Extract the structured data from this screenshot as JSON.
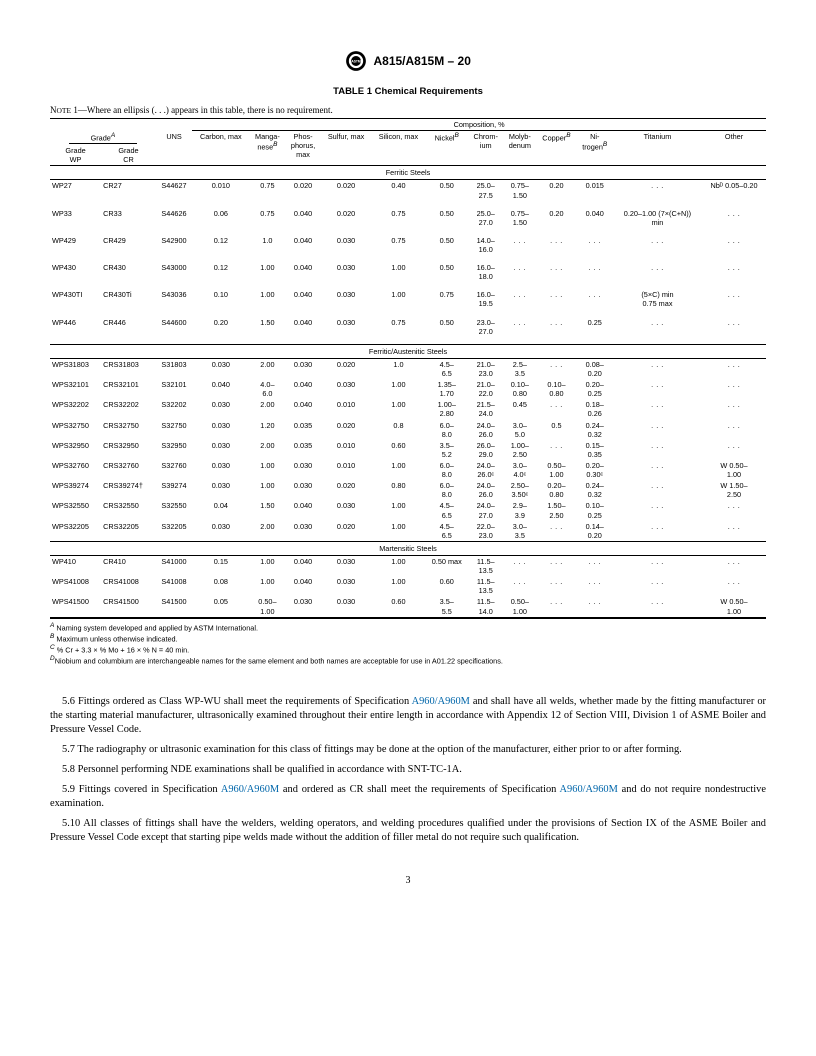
{
  "header": {
    "designation": "A815/A815M – 20"
  },
  "tableTitle": "TABLE 1 Chemical Requirements",
  "note": {
    "label": "Note",
    "num": "1",
    "text": "—Where an ellipsis (. . .) appears in this table, there is no requirement."
  },
  "compositionHeader": "Composition, %",
  "gradeHeader": "Grade",
  "columns": [
    "Grade WP",
    "Grade CR",
    "UNS",
    "Carbon, max",
    "Manga-nese",
    "Phos-phorus, max",
    "Sulfur, max",
    "Silicon, max",
    "Nickel",
    "Chrom-ium",
    "Molyb-denum",
    "Copper",
    "Ni-trogen",
    "Titanium",
    "Other"
  ],
  "superB": "B",
  "superA": "A",
  "sections": [
    {
      "title": "Ferritic Steels",
      "rows": [
        [
          "WP27",
          "CR27",
          "S44627",
          "0.010",
          "0.75",
          "0.020",
          "0.020",
          "0.40",
          "0.50",
          "25.0–27.5",
          "0.75–1.50",
          "0.20",
          "0.015",
          ". . .",
          "Nbᴰ 0.05–0.20"
        ],
        [
          "WP33",
          "CR33",
          "S44626",
          "0.06",
          "0.75",
          "0.040",
          "0.020",
          "0.75",
          "0.50",
          "25.0–27.0",
          "0.75–1.50",
          "0.20",
          "0.040",
          "0.20–1.00 (7×(C+N)) min",
          ". . ."
        ],
        [
          "WP429",
          "CR429",
          "S42900",
          "0.12",
          "1.0",
          "0.040",
          "0.030",
          "0.75",
          "0.50",
          "14.0–16.0",
          ". . .",
          ". . .",
          ". . .",
          ". . .",
          ". . ."
        ],
        [
          "WP430",
          "CR430",
          "S43000",
          "0.12",
          "1.00",
          "0.040",
          "0.030",
          "1.00",
          "0.50",
          "16.0–18.0",
          ". . .",
          ". . .",
          ". . .",
          ". . .",
          ". . ."
        ],
        [
          "WP430TI",
          "CR430Ti",
          "S43036",
          "0.10",
          "1.00",
          "0.040",
          "0.030",
          "1.00",
          "0.75",
          "16.0–19.5",
          ". . .",
          ". . .",
          ". . .",
          "(5×C) min 0.75 max",
          ". . ."
        ],
        [
          "WP446",
          "CR446",
          "S44600",
          "0.20",
          "1.50",
          "0.040",
          "0.030",
          "0.75",
          "0.50",
          "23.0–27.0",
          ". . .",
          ". . .",
          "0.25",
          ". . .",
          ". . ."
        ]
      ]
    },
    {
      "title": "Ferritic/Austenitic Steels",
      "rows": [
        [
          "WPS31803",
          "CRS31803",
          "S31803",
          "0.030",
          "2.00",
          "0.030",
          "0.020",
          "1.0",
          "4.5–6.5",
          "21.0–23.0",
          "2.5–3.5",
          ". . .",
          "0.08–0.20",
          ". . .",
          ". . ."
        ],
        [
          "WPS32101",
          "CRS32101",
          "S32101",
          "0.040",
          "4.0–6.0",
          "0.040",
          "0.030",
          "1.00",
          "1.35–1.70",
          "21.0–22.0",
          "0.10–0.80",
          "0.10–0.80",
          "0.20–0.25",
          ". . .",
          ". . ."
        ],
        [
          "WPS32202",
          "CRS32202",
          "S32202",
          "0.030",
          "2.00",
          "0.040",
          "0.010",
          "1.00",
          "1.00–2.80",
          "21.5–24.0",
          "0.45",
          ". . .",
          "0.18–0.26",
          ". . .",
          ". . ."
        ],
        [
          "WPS32750",
          "CRS32750",
          "S32750",
          "0.030",
          "1.20",
          "0.035",
          "0.020",
          "0.8",
          "6.0–8.0",
          "24.0–26.0",
          "3.0–5.0",
          "0.5",
          "0.24–0.32",
          ". . .",
          ". . ."
        ],
        [
          "WPS32950",
          "CRS32950",
          "S32950",
          "0.030",
          "2.00",
          "0.035",
          "0.010",
          "0.60",
          "3.5–5.2",
          "26.0–29.0",
          "1.00–2.50",
          ". . .",
          "0.15–0.35",
          ". . .",
          ". . ."
        ],
        [
          "WPS32760",
          "CRS32760",
          "S32760",
          "0.030",
          "1.00",
          "0.030",
          "0.010",
          "1.00",
          "6.0–8.0",
          "24.0–26.0ᶜ",
          "3.0–4.0ᶜ",
          "0.50–1.00",
          "0.20–0.30ᶜ",
          ". . .",
          "W 0.50–1.00"
        ],
        [
          "WPS39274",
          "CRS39274†",
          "S39274",
          "0.030",
          "1.00",
          "0.030",
          "0.020",
          "0.80",
          "6.0–8.0",
          "24.0–26.0",
          "2.50–3.50ᶜ",
          "0.20–0.80",
          "0.24–0.32",
          ". . .",
          "W 1.50–2.50"
        ],
        [
          "WPS32550",
          "CRS32550",
          "S32550",
          "0.04",
          "1.50",
          "0.040",
          "0.030",
          "1.00",
          "4.5–6.5",
          "24.0–27.0",
          "2.9–3.9",
          "1.50–2.50",
          "0.10–0.25",
          ". . .",
          ". . ."
        ],
        [
          "WPS32205",
          "CRS32205",
          "S32205",
          "0.030",
          "2.00",
          "0.030",
          "0.020",
          "1.00",
          "4.5–6.5",
          "22.0–23.0",
          "3.0–3.5",
          ". . .",
          "0.14–0.20",
          ". . .",
          ". . ."
        ]
      ]
    },
    {
      "title": "Martensitic Steels",
      "rows": [
        [
          "WP410",
          "CR410",
          "S41000",
          "0.15",
          "1.00",
          "0.040",
          "0.030",
          "1.00",
          "0.50 max",
          "11.5–13.5",
          ". . .",
          ". . .",
          ". . .",
          ". . .",
          ". . ."
        ],
        [
          "WPS41008",
          "CRS41008",
          "S41008",
          "0.08",
          "1.00",
          "0.040",
          "0.030",
          "1.00",
          "0.60",
          "11.5–13.5",
          ". . .",
          ". . .",
          ". . .",
          ". . .",
          ". . ."
        ],
        [
          "WPS41500",
          "CRS41500",
          "S41500",
          "0.05",
          "0.50–1.00",
          "0.030",
          "0.030",
          "0.60",
          "3.5–5.5",
          "11.5–14.0",
          "0.50–1.00",
          ". . .",
          ". . .",
          ". . .",
          "W 0.50–1.00"
        ]
      ]
    }
  ],
  "footnotes": {
    "A": "Naming system developed and applied by ASTM International.",
    "B": "Maximum unless otherwise indicated.",
    "C": "% Cr + 3.3 × % Mo + 16 × % N = 40 min.",
    "D": "Niobium and columbium are interchangeable names for the same element and both names are acceptable for use in A01.22 specifications."
  },
  "paragraphs": {
    "p56a": "5.6 Fittings ordered as Class WP-WU shall meet the requirements of Specification ",
    "p56link": "A960/A960M",
    "p56b": " and shall have all welds, whether made by the fitting manufacturer or the starting material manufacturer, ultrasonically examined throughout their entire length in accordance with Appendix 12 of Section VIII, Division 1 of ASME Boiler and Pressure Vessel Code.",
    "p57": "5.7 The radiography or ultrasonic examination for this class of fittings may be done at the option of the manufacturer, either prior to or after forming.",
    "p58": "5.8 Personnel performing NDE examinations shall be qualified in accordance with SNT-TC-1A.",
    "p59a": "5.9 Fittings covered in Specification ",
    "p59b": " and ordered as CR shall meet the requirements of Specification ",
    "p59c": " and do not require nondestructive examination.",
    "p510": "5.10 All classes of fittings shall have the welders, welding operators, and welding procedures qualified under the provisions of Section IX of the ASME Boiler and Pressure Vessel Code except that starting pipe welds made without the addition of filler metal do not require such qualification."
  },
  "pageNumber": "3"
}
